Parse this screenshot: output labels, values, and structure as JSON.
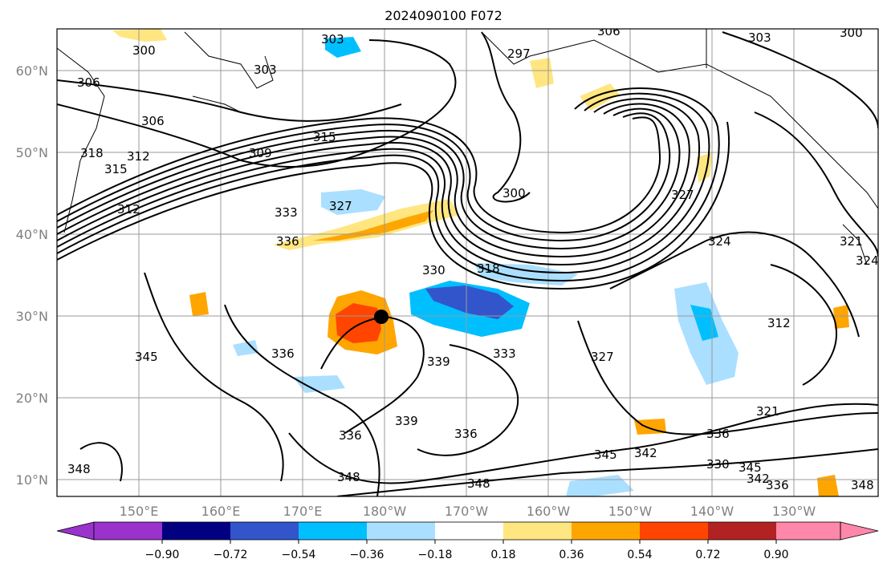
{
  "title": "2024090100 F072",
  "map": {
    "lat_labels": [
      "60°N",
      "50°N",
      "40°N",
      "30°N",
      "20°N",
      "10°N"
    ],
    "lon_labels": [
      "150°E",
      "160°E",
      "170°E",
      "180°W",
      "170°W",
      "160°W",
      "150°W",
      "140°W",
      "130°W"
    ],
    "contour_labels": [
      "303",
      "306",
      "300",
      "297",
      "303",
      "300",
      "306",
      "303",
      "306",
      "318",
      "315",
      "312",
      "309",
      "315",
      "327",
      "300",
      "333",
      "312",
      "336",
      "330",
      "318",
      "324",
      "321",
      "327",
      "336",
      "339",
      "333",
      "327",
      "312",
      "345",
      "339",
      "336",
      "336",
      "345",
      "342",
      "336",
      "321",
      "348",
      "348",
      "348",
      "345",
      "342",
      "336",
      "348",
      "330",
      "324"
    ],
    "storm_marker": "tropical-cyclone-center"
  },
  "colorbar": {
    "ticks": [
      "−0.90",
      "−0.72",
      "−0.54",
      "−0.36",
      "−0.18",
      "0.18",
      "0.36",
      "0.54",
      "0.72",
      "0.90"
    ],
    "colors": [
      "#9933cc",
      "#000080",
      "#3355cc",
      "#00bfff",
      "#aadfff",
      "#ffffff",
      "#ffe680",
      "#ffa500",
      "#ff4500",
      "#b22222",
      "#ff88aa"
    ]
  }
}
